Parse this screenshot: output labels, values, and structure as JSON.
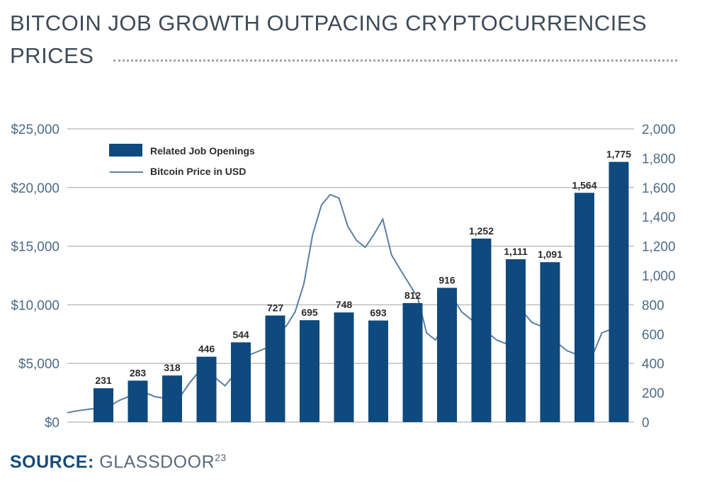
{
  "title": "BITCOIN JOB GROWTH OUTPACING CRYPTOCURRENCIES PRICES",
  "source": {
    "label": "SOURCE:",
    "name": "GLASSDOOR",
    "footnote": "23"
  },
  "chart_data": {
    "type": "bar+line",
    "colors": {
      "bars": "#0f4a7e",
      "line": "#5b7fa2",
      "axis_text": "#4d6b87",
      "grid": "#bfbfbf"
    },
    "legend": {
      "placement": "top-left",
      "entries": [
        "Related Job Openings",
        "Bitcoin Price in USD"
      ]
    },
    "left_axis": {
      "ticks": [
        "$0",
        "$5,000",
        "$10,000",
        "$15,000",
        "$20,000",
        "$25,000"
      ],
      "range": [
        0,
        25000
      ]
    },
    "right_axis": {
      "ticks": [
        "0",
        "200",
        "400",
        "600",
        "800",
        "1,000",
        "1,200",
        "1,400",
        "1,600",
        "1,800",
        "2,000"
      ],
      "range": [
        0,
        2000
      ]
    },
    "grid": true,
    "series": [
      {
        "name": "Related Job Openings",
        "type": "bar",
        "axis": "right",
        "values": [
          231,
          283,
          318,
          446,
          544,
          727,
          695,
          748,
          693,
          812,
          916,
          1252,
          1111,
          1091,
          1564,
          1775
        ],
        "labels": [
          "231",
          "283",
          "318",
          "446",
          "544",
          "727",
          "695",
          "748",
          "693",
          "812",
          "916",
          "1,252",
          "1,111",
          "1,091",
          "1,564",
          "1,775"
        ]
      },
      {
        "name": "Bitcoin Price in USD",
        "type": "line",
        "axis": "left",
        "values": [
          800,
          950,
          1050,
          1150,
          1300,
          1450,
          1870,
          2170,
          2480,
          2480,
          2170,
          2050,
          2480,
          2300,
          3380,
          4290,
          4000,
          3700,
          3100,
          4000,
          5200,
          5800,
          6100,
          6400,
          7600,
          8200,
          9400,
          11800,
          16000,
          18500,
          19400,
          19100,
          16700,
          15500,
          14900,
          16000,
          17300,
          14250,
          13000,
          11800,
          10600,
          7600,
          7000,
          8200,
          10600,
          9400,
          8800,
          8200,
          7600,
          7000,
          6700,
          8200,
          9400,
          8500,
          8200,
          7600,
          6700,
          6100,
          5800,
          6100,
          5800,
          7600,
          7900
        ]
      }
    ]
  }
}
